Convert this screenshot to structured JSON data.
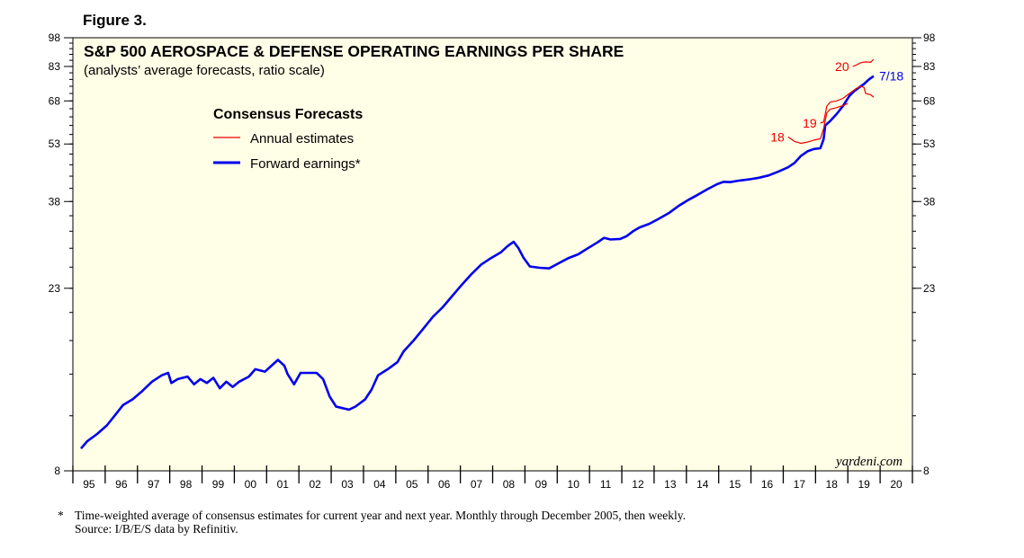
{
  "figure_label": "Figure 3.",
  "footnote": {
    "marker": "*",
    "line1": "Time-weighted average of consensus estimates for current year and next year. Monthly through December 2005, then weekly.",
    "line2": "Source: I/B/E/S data by Refinitiv."
  },
  "colors": {
    "plot_background": "#FFFEE6",
    "forward": "#0000EE",
    "annual": "#EE0000",
    "axis": "#000000"
  },
  "chart_data": {
    "type": "line",
    "title": "S&P 500 AEROSPACE & DEFENSE OPERATING EARNINGS PER SHARE",
    "subtitle": "(analysts’ average forecasts, ratio scale)",
    "legend_title": "Consensus Forecasts",
    "legend": [
      {
        "name": "Annual estimates",
        "color": "#EE0000"
      },
      {
        "name": "Forward earnings*",
        "color": "#0000EE"
      }
    ],
    "watermark": "yardeni.com",
    "y_scale": "log",
    "ylim": [
      8,
      98
    ],
    "y_ticks": [
      8,
      23,
      38,
      53,
      68,
      83,
      98
    ],
    "xlim": [
      1994.75,
      2020.75
    ],
    "x_tick_labels": [
      "95",
      "96",
      "97",
      "98",
      "99",
      "00",
      "01",
      "02",
      "03",
      "04",
      "05",
      "06",
      "07",
      "08",
      "09",
      "10",
      "11",
      "12",
      "13",
      "14",
      "15",
      "16",
      "17",
      "18",
      "19",
      "20"
    ],
    "series": [
      {
        "name": "Forward earnings*",
        "end_label": "7/18",
        "points": [
          [
            1995.0,
            9.1
          ],
          [
            1995.2,
            9.5
          ],
          [
            1995.5,
            9.9
          ],
          [
            1995.8,
            10.4
          ],
          [
            1996.0,
            10.9
          ],
          [
            1996.3,
            11.7
          ],
          [
            1996.6,
            12.1
          ],
          [
            1996.9,
            12.7
          ],
          [
            1997.2,
            13.4
          ],
          [
            1997.5,
            13.9
          ],
          [
            1997.7,
            14.1
          ],
          [
            1997.8,
            13.3
          ],
          [
            1998.0,
            13.6
          ],
          [
            1998.3,
            13.8
          ],
          [
            1998.5,
            13.2
          ],
          [
            1998.7,
            13.6
          ],
          [
            1998.9,
            13.3
          ],
          [
            1999.1,
            13.7
          ],
          [
            1999.3,
            12.9
          ],
          [
            1999.5,
            13.4
          ],
          [
            1999.7,
            13.0
          ],
          [
            1999.9,
            13.4
          ],
          [
            2000.2,
            13.8
          ],
          [
            2000.4,
            14.4
          ],
          [
            2000.7,
            14.2
          ],
          [
            2000.9,
            14.7
          ],
          [
            2001.1,
            15.2
          ],
          [
            2001.3,
            14.7
          ],
          [
            2001.4,
            14.0
          ],
          [
            2001.6,
            13.2
          ],
          [
            2001.8,
            14.1
          ],
          [
            2002.0,
            14.1
          ],
          [
            2002.3,
            14.1
          ],
          [
            2002.5,
            13.6
          ],
          [
            2002.7,
            12.3
          ],
          [
            2002.9,
            11.6
          ],
          [
            2003.1,
            11.5
          ],
          [
            2003.3,
            11.4
          ],
          [
            2003.5,
            11.6
          ],
          [
            2003.8,
            12.1
          ],
          [
            2004.0,
            12.8
          ],
          [
            2004.2,
            13.9
          ],
          [
            2004.5,
            14.4
          ],
          [
            2004.8,
            15.0
          ],
          [
            2005.0,
            16.0
          ],
          [
            2005.3,
            17.0
          ],
          [
            2005.6,
            18.2
          ],
          [
            2005.9,
            19.5
          ],
          [
            2006.2,
            20.6
          ],
          [
            2006.5,
            22.0
          ],
          [
            2006.8,
            23.5
          ],
          [
            2007.1,
            25.0
          ],
          [
            2007.4,
            26.4
          ],
          [
            2007.7,
            27.4
          ],
          [
            2008.0,
            28.3
          ],
          [
            2008.2,
            29.3
          ],
          [
            2008.4,
            30.1
          ],
          [
            2008.55,
            29.0
          ],
          [
            2008.7,
            27.5
          ],
          [
            2008.9,
            26.1
          ],
          [
            2009.2,
            25.9
          ],
          [
            2009.5,
            25.8
          ],
          [
            2009.8,
            26.6
          ],
          [
            2010.1,
            27.4
          ],
          [
            2010.4,
            28.0
          ],
          [
            2010.7,
            29.0
          ],
          [
            2011.0,
            30.0
          ],
          [
            2011.2,
            30.8
          ],
          [
            2011.4,
            30.5
          ],
          [
            2011.7,
            30.6
          ],
          [
            2011.9,
            31.1
          ],
          [
            2012.1,
            32.0
          ],
          [
            2012.3,
            32.7
          ],
          [
            2012.6,
            33.4
          ],
          [
            2012.9,
            34.4
          ],
          [
            2013.2,
            35.5
          ],
          [
            2013.5,
            37.0
          ],
          [
            2013.8,
            38.3
          ],
          [
            2014.1,
            39.5
          ],
          [
            2014.4,
            40.8
          ],
          [
            2014.7,
            42.0
          ],
          [
            2014.9,
            42.6
          ],
          [
            2015.1,
            42.5
          ],
          [
            2015.4,
            42.9
          ],
          [
            2015.7,
            43.2
          ],
          [
            2016.0,
            43.6
          ],
          [
            2016.3,
            44.2
          ],
          [
            2016.6,
            45.2
          ],
          [
            2016.9,
            46.3
          ],
          [
            2017.1,
            47.5
          ],
          [
            2017.3,
            49.5
          ],
          [
            2017.5,
            50.8
          ],
          [
            2017.7,
            51.5
          ],
          [
            2017.9,
            51.7
          ],
          [
            2018.0,
            54.5
          ],
          [
            2018.05,
            59.0
          ],
          [
            2018.2,
            60.5
          ],
          [
            2018.4,
            63.0
          ],
          [
            2018.6,
            66.0
          ],
          [
            2018.8,
            70.0
          ],
          [
            2018.95,
            72.0
          ],
          [
            2019.1,
            73.5
          ],
          [
            2019.25,
            75.0
          ],
          [
            2019.4,
            77.0
          ],
          [
            2019.55,
            78.5
          ]
        ]
      },
      {
        "name": "Annual estimates 18",
        "label": "18",
        "points": [
          [
            2016.9,
            55.2
          ],
          [
            2017.1,
            53.8
          ],
          [
            2017.3,
            53.2
          ],
          [
            2017.5,
            53.6
          ],
          [
            2017.7,
            54.2
          ],
          [
            2017.9,
            54.6
          ],
          [
            2018.0,
            58.0
          ],
          [
            2018.1,
            63.5
          ],
          [
            2018.2,
            64.8
          ],
          [
            2018.4,
            65.4
          ],
          [
            2018.6,
            66.2
          ],
          [
            2018.75,
            67.0
          ]
        ]
      },
      {
        "name": "Annual estimates 19",
        "label": "19",
        "points": [
          [
            2017.9,
            59.8
          ],
          [
            2018.0,
            60.2
          ],
          [
            2018.05,
            63.0
          ],
          [
            2018.1,
            66.0
          ],
          [
            2018.2,
            67.5
          ],
          [
            2018.4,
            68.0
          ],
          [
            2018.6,
            69.0
          ],
          [
            2018.8,
            71.0
          ],
          [
            2019.0,
            73.0
          ],
          [
            2019.15,
            74.0
          ],
          [
            2019.25,
            73.5
          ],
          [
            2019.3,
            71.0
          ],
          [
            2019.45,
            70.5
          ],
          [
            2019.55,
            69.5
          ]
        ]
      },
      {
        "name": "Annual estimates 20",
        "label": "20",
        "points": [
          [
            2018.9,
            83.0
          ],
          [
            2019.0,
            83.6
          ],
          [
            2019.15,
            84.8
          ],
          [
            2019.3,
            85.2
          ],
          [
            2019.45,
            85.0
          ],
          [
            2019.55,
            86.5
          ]
        ]
      }
    ]
  }
}
